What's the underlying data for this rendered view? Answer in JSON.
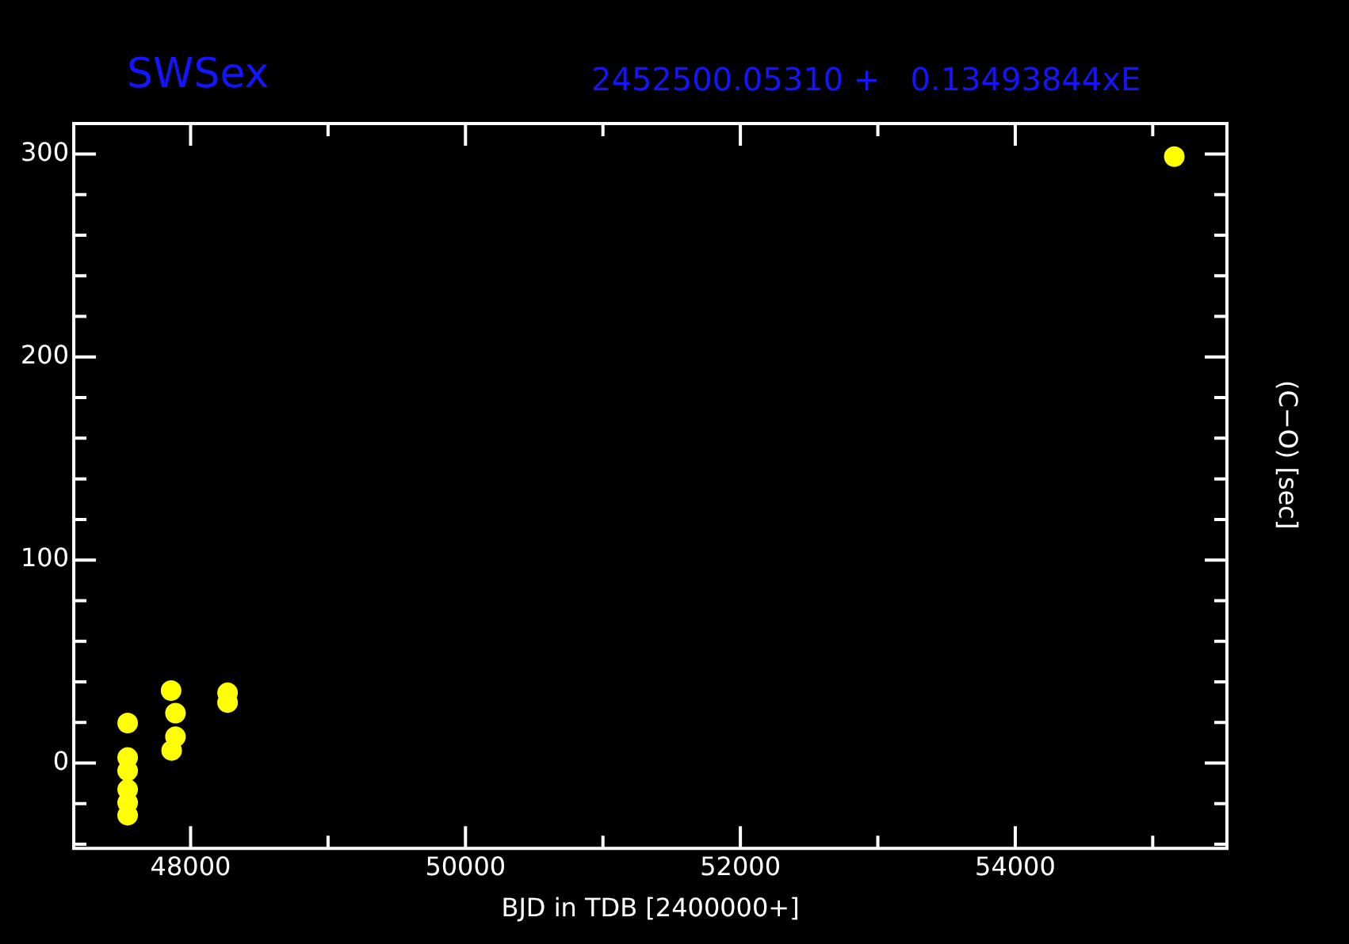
{
  "chart_data": {
    "type": "scatter",
    "title": "SWSex",
    "subtitle": "2452500.05310 +   0.13493844xE",
    "xlabel": "BJD in TDB [2400000+]",
    "ylabel": "(C−O) [sec]",
    "series": [
      {
        "color": "#ffff00",
        "x": [
          47542,
          47542,
          47542,
          47542,
          47542,
          47542,
          47858,
          47890,
          47890,
          47862,
          48269,
          48269,
          55157
        ],
        "values": [
          19.7,
          2.7,
          -3.8,
          -13,
          -19.5,
          -25.7,
          35.7,
          24.6,
          13,
          6.2,
          34.6,
          29.8,
          298.7
        ]
      }
    ],
    "marker": "circle",
    "grid": false,
    "legend": false,
    "xlim": [
      47150,
      55540
    ],
    "xticks": [
      {
        "value": 48000,
        "label": "48000"
      },
      {
        "value": 49000,
        "label": null
      },
      {
        "value": 50000,
        "label": "50000"
      },
      {
        "value": 51000,
        "label": null
      },
      {
        "value": 52000,
        "label": "52000"
      },
      {
        "value": 53000,
        "label": null
      },
      {
        "value": 54000,
        "label": "54000"
      },
      {
        "value": 55000,
        "label": null
      }
    ],
    "ylim": [
      -42,
      315
    ],
    "yticks": [
      {
        "value": -40,
        "label": null
      },
      {
        "value": -20,
        "label": null
      },
      0,
      {
        "value": 20,
        "label": null
      },
      {
        "value": 40,
        "label": null
      },
      {
        "value": 60,
        "label": null
      },
      {
        "value": 80,
        "label": null
      },
      100,
      {
        "value": 120,
        "label": null
      },
      {
        "value": 140,
        "label": null
      },
      {
        "value": 160,
        "label": null
      },
      {
        "value": 180,
        "label": null
      },
      200,
      {
        "value": 220,
        "label": null
      },
      {
        "value": 240,
        "label": null
      },
      {
        "value": 260,
        "label": null
      },
      {
        "value": 280,
        "label": null
      },
      300
    ]
  }
}
